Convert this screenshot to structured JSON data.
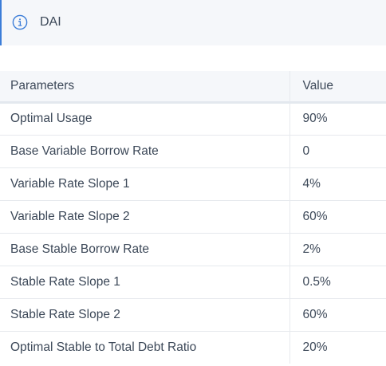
{
  "info": {
    "label": "DAI",
    "icon": "info-icon"
  },
  "table": {
    "headers": {
      "param": "Parameters",
      "value": "Value"
    },
    "rows": [
      {
        "param": "Optimal Usage",
        "value": "90%"
      },
      {
        "param": "Base Variable Borrow Rate",
        "value": "0"
      },
      {
        "param": "Variable Rate Slope 1",
        "value": "4%"
      },
      {
        "param": "Variable Rate Slope 2",
        "value": "60%"
      },
      {
        "param": "Base Stable Borrow Rate",
        "value": "2%"
      },
      {
        "param": "Stable Rate Slope 1",
        "value": "0.5%"
      },
      {
        "param": "Stable Rate Slope 2",
        "value": "60%"
      },
      {
        "param": "Optimal Stable to Total Debt Ratio",
        "value": "20%"
      }
    ]
  },
  "colors": {
    "accent": "#3b7dd8",
    "background": "#f5f7fa",
    "text": "#3c4858",
    "border": "#e6e9ed"
  }
}
